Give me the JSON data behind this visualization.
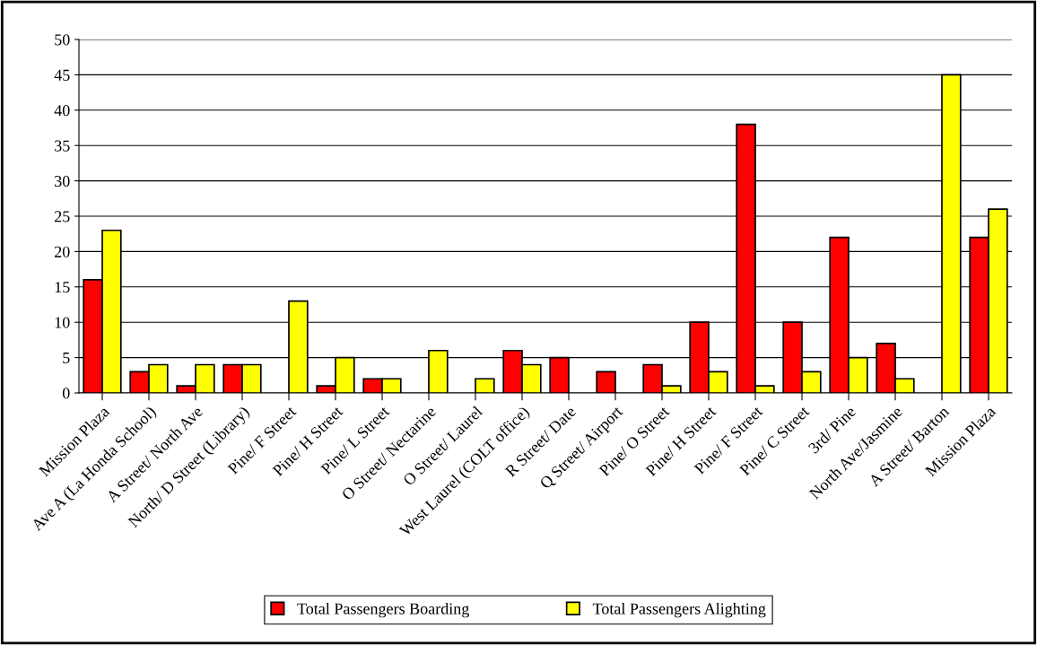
{
  "chart_data": {
    "type": "bar",
    "categories": [
      "Mission Plaza",
      "Ave A (La Honda School)",
      "A Street/ North Ave",
      "North/ D Street (Library)",
      "Pine/ F Street",
      "Pine/ H Street",
      "Pine/ L Street",
      "O Street/ Nectarine",
      "O Street/ Laurel",
      "West Laurel (COLT office)",
      "R Street/ Date",
      "Q Street/ Airport",
      "Pine/ O Street",
      "Pine/ H Street",
      "Pine/ F Street",
      "Pine/ C Street",
      "3rd/ Pine",
      "North Ave/Jasmine",
      "A Street/ Barton",
      "Mission Plaza"
    ],
    "series": [
      {
        "name": "Total Passengers Boarding",
        "color": "#ff0000",
        "values": [
          16,
          3,
          1,
          4,
          null,
          1,
          2,
          null,
          null,
          6,
          5,
          3,
          4,
          10,
          38,
          10,
          22,
          7,
          null,
          22
        ]
      },
      {
        "name": "Total Passengers Alighting",
        "color": "#ffff00",
        "values": [
          23,
          4,
          4,
          4,
          13,
          5,
          2,
          6,
          2,
          4,
          null,
          null,
          1,
          3,
          1,
          3,
          5,
          2,
          45,
          26
        ]
      }
    ],
    "ylim": [
      0,
      50
    ],
    "yticks": [
      0,
      5,
      10,
      15,
      20,
      25,
      30,
      35,
      40,
      45,
      50
    ],
    "grid": "y",
    "legend": "bottom"
  }
}
